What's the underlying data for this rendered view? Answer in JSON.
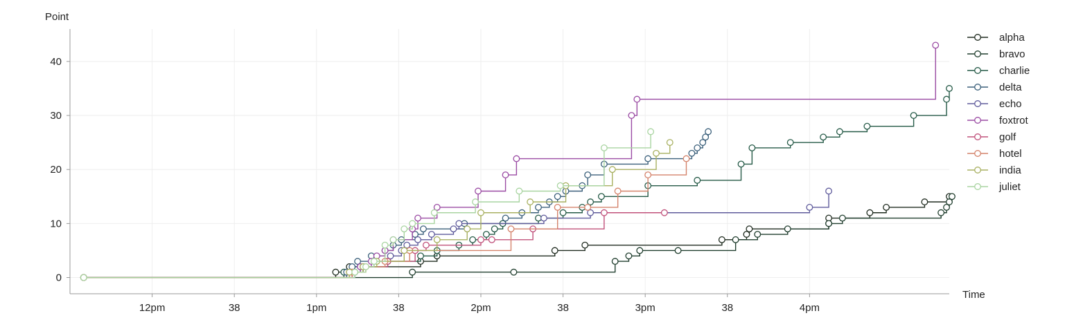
{
  "chart_data": {
    "type": "line",
    "subtype": "step",
    "title": "",
    "ylabel": "Point",
    "xlabel": "Time",
    "ylim": [
      -3,
      46
    ],
    "xlim": [
      "11:30",
      "16:51"
    ],
    "grid": true,
    "legend_placement": "top-right",
    "y_ticks": [
      0,
      10,
      20,
      30,
      40
    ],
    "x_ticks": [
      {
        "at": "12:00",
        "label": "12pm"
      },
      {
        "at": "12:30",
        "label": "38"
      },
      {
        "at": "13:00",
        "label": "1pm"
      },
      {
        "at": "13:30",
        "label": "38"
      },
      {
        "at": "14:00",
        "label": "2pm"
      },
      {
        "at": "14:30",
        "label": "38"
      },
      {
        "at": "15:00",
        "label": "3pm"
      },
      {
        "at": "15:30",
        "label": "38"
      },
      {
        "at": "16:00",
        "label": "4pm"
      }
    ],
    "series": [
      {
        "name": "alpha",
        "color": "#1e2a1e",
        "points": [
          [
            "11:35",
            0
          ],
          [
            "13:07",
            1
          ],
          [
            "13:12",
            2
          ],
          [
            "13:38",
            3
          ],
          [
            "13:44",
            4
          ],
          [
            "14:27",
            5
          ],
          [
            "14:38",
            6
          ],
          [
            "15:28",
            7
          ],
          [
            "15:37",
            8
          ],
          [
            "15:38",
            9
          ],
          [
            "16:07",
            10
          ],
          [
            "16:07",
            11
          ],
          [
            "16:22",
            12
          ],
          [
            "16:28",
            13
          ],
          [
            "16:42",
            14
          ],
          [
            "16:51",
            15
          ]
        ]
      },
      {
        "name": "bravo",
        "color": "#1f3d2d",
        "points": [
          [
            "11:35",
            0
          ],
          [
            "13:35",
            1
          ],
          [
            "14:12",
            1
          ],
          [
            "14:49",
            3
          ],
          [
            "14:54",
            4
          ],
          [
            "14:58",
            5
          ],
          [
            "15:12",
            5
          ],
          [
            "15:33",
            7
          ],
          [
            "15:41",
            8
          ],
          [
            "15:52",
            9
          ],
          [
            "16:07",
            10
          ],
          [
            "16:12",
            11
          ],
          [
            "16:48",
            12
          ],
          [
            "16:50",
            13
          ],
          [
            "16:51",
            14
          ],
          [
            "16:52",
            15
          ]
        ]
      },
      {
        "name": "charlie",
        "color": "#245946",
        "points": [
          [
            "11:35",
            0
          ],
          [
            "13:10",
            1
          ],
          [
            "13:17",
            2
          ],
          [
            "13:26",
            3
          ],
          [
            "13:38",
            4
          ],
          [
            "13:44",
            5
          ],
          [
            "13:52",
            6
          ],
          [
            "13:57",
            7
          ],
          [
            "14:02",
            8
          ],
          [
            "14:05",
            9
          ],
          [
            "14:08",
            10
          ],
          [
            "14:21",
            11
          ],
          [
            "14:30",
            12
          ],
          [
            "14:37",
            13
          ],
          [
            "14:40",
            14
          ],
          [
            "14:44",
            15
          ],
          [
            "15:01",
            17
          ],
          [
            "15:19",
            18
          ],
          [
            "15:35",
            21
          ],
          [
            "15:39",
            24
          ],
          [
            "15:53",
            25
          ],
          [
            "16:05",
            26
          ],
          [
            "16:11",
            27
          ],
          [
            "16:21",
            28
          ],
          [
            "16:38",
            30
          ],
          [
            "16:50",
            33
          ],
          [
            "16:51",
            35
          ]
        ]
      },
      {
        "name": "delta",
        "color": "#3a5f7a",
        "points": [
          [
            "11:35",
            0
          ],
          [
            "13:11",
            1
          ],
          [
            "13:13",
            2
          ],
          [
            "13:15",
            3
          ],
          [
            "13:20",
            4
          ],
          [
            "13:25",
            5
          ],
          [
            "13:28",
            6
          ],
          [
            "13:31",
            7
          ],
          [
            "13:36",
            8
          ],
          [
            "13:39",
            9
          ],
          [
            "13:54",
            10
          ],
          [
            "14:09",
            11
          ],
          [
            "14:15",
            12
          ],
          [
            "14:21",
            13
          ],
          [
            "14:25",
            14
          ],
          [
            "14:28",
            15
          ],
          [
            "14:31",
            16
          ],
          [
            "14:37",
            17
          ],
          [
            "14:39",
            19
          ],
          [
            "14:45",
            21
          ],
          [
            "15:01",
            22
          ],
          [
            "15:17",
            23
          ],
          [
            "15:19",
            24
          ],
          [
            "15:21",
            25
          ],
          [
            "15:22",
            26
          ],
          [
            "15:23",
            27
          ]
        ]
      },
      {
        "name": "echo",
        "color": "#5e5a9b",
        "points": [
          [
            "11:35",
            0
          ],
          [
            "13:14",
            1
          ],
          [
            "13:16",
            2
          ],
          [
            "13:21",
            3
          ],
          [
            "13:27",
            4
          ],
          [
            "13:31",
            5
          ],
          [
            "13:33",
            6
          ],
          [
            "13:37",
            7
          ],
          [
            "13:42",
            8
          ],
          [
            "13:50",
            9
          ],
          [
            "13:52",
            10
          ],
          [
            "14:23",
            11
          ],
          [
            "14:40",
            12
          ],
          [
            "16:00",
            13
          ],
          [
            "16:07",
            16
          ]
        ]
      },
      {
        "name": "foxtrot",
        "color": "#9a4aa3",
        "points": [
          [
            "11:35",
            0
          ],
          [
            "13:13",
            1
          ],
          [
            "13:16",
            2
          ],
          [
            "13:20",
            3
          ],
          [
            "13:22",
            4
          ],
          [
            "13:25",
            5
          ],
          [
            "13:28",
            7
          ],
          [
            "13:35",
            9
          ],
          [
            "13:37",
            11
          ],
          [
            "13:44",
            13
          ],
          [
            "13:59",
            16
          ],
          [
            "14:09",
            19
          ],
          [
            "14:13",
            22
          ],
          [
            "14:55",
            30
          ],
          [
            "14:57",
            33
          ],
          [
            "16:46",
            43
          ]
        ]
      },
      {
        "name": "golf",
        "color": "#c0507a",
        "points": [
          [
            "11:35",
            0
          ],
          [
            "13:12",
            1
          ],
          [
            "13:17",
            2
          ],
          [
            "13:26",
            3
          ],
          [
            "13:36",
            5
          ],
          [
            "13:40",
            6
          ],
          [
            "14:00",
            7
          ],
          [
            "14:04",
            7
          ],
          [
            "14:19",
            9
          ],
          [
            "14:45",
            12
          ],
          [
            "15:07",
            12
          ]
        ]
      },
      {
        "name": "hotel",
        "color": "#d4826a",
        "points": [
          [
            "11:35",
            0
          ],
          [
            "13:13",
            1
          ],
          [
            "13:18",
            2
          ],
          [
            "13:25",
            3
          ],
          [
            "13:34",
            5
          ],
          [
            "14:11",
            9
          ],
          [
            "14:28",
            13
          ],
          [
            "14:39",
            13
          ],
          [
            "14:50",
            16
          ],
          [
            "15:01",
            19
          ],
          [
            "15:15",
            22
          ]
        ]
      },
      {
        "name": "india",
        "color": "#a8b060",
        "points": [
          [
            "11:35",
            0
          ],
          [
            "13:12",
            1
          ],
          [
            "13:17",
            2
          ],
          [
            "13:22",
            3
          ],
          [
            "13:32",
            5
          ],
          [
            "13:44",
            7
          ],
          [
            "13:55",
            9
          ],
          [
            "14:00",
            12
          ],
          [
            "14:18",
            14
          ],
          [
            "14:31",
            17
          ],
          [
            "14:48",
            20
          ],
          [
            "15:04",
            23
          ],
          [
            "15:09",
            25
          ]
        ]
      },
      {
        "name": "juliet",
        "color": "#a8d4a0",
        "points": [
          [
            "11:35",
            0
          ],
          [
            "13:14",
            1
          ],
          [
            "13:18",
            2
          ],
          [
            "13:21",
            3
          ],
          [
            "13:25",
            6
          ],
          [
            "13:28",
            7
          ],
          [
            "13:32",
            9
          ],
          [
            "13:35",
            10
          ],
          [
            "13:43",
            12
          ],
          [
            "13:58",
            14
          ],
          [
            "14:14",
            16
          ],
          [
            "14:29",
            17
          ],
          [
            "14:45",
            24
          ],
          [
            "15:02",
            27
          ]
        ]
      }
    ]
  }
}
